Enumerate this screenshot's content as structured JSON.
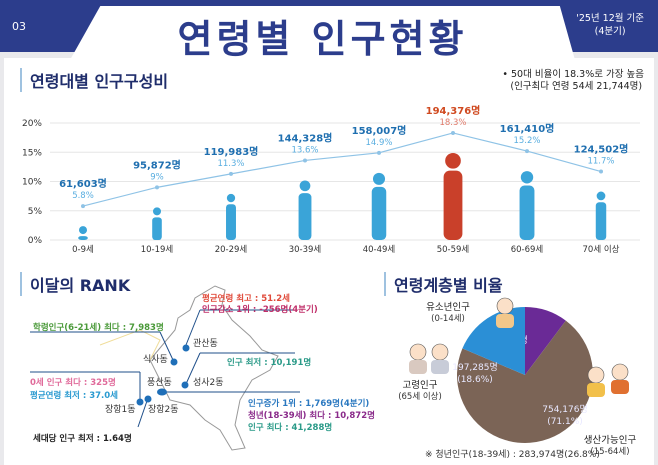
{
  "header": {
    "page_no": "03",
    "title": "연령별 인구현황",
    "date_line1": "'25년 12월 기준",
    "date_line2": "(4분기)"
  },
  "section1": {
    "title": "연령대별 인구구성비",
    "note_line1": "• 50대 비율이 18.3%로 가장 높음",
    "note_line2": "(인구최다 연령 54세 21,744명)"
  },
  "chart_data": [
    {
      "type": "line",
      "categories": [
        "0-9세",
        "10-19세",
        "20-29세",
        "30-39세",
        "40-49세",
        "50-59세",
        "60-69세",
        "70세 이상"
      ],
      "series": [
        {
          "values": [
            5.8,
            9,
            11.3,
            13.6,
            14.9,
            18.3,
            15.2,
            11.7
          ]
        }
      ],
      "counts": [
        "61,603명",
        "95,872명",
        "119,983명",
        "144,328명",
        "158,007명",
        "194,376명",
        "161,410명",
        "124,502명"
      ],
      "pct_labels": [
        "5.8%",
        "9%",
        "11.3%",
        "13.6%",
        "14.9%",
        "18.3%",
        "15.2%",
        "11.7%"
      ],
      "yticks": [
        "0%",
        "5%",
        "10%",
        "15%",
        "20%"
      ],
      "ylim": [
        0,
        20
      ],
      "highlight_index": 5,
      "colors": {
        "normal": "#3aa4d8",
        "highlight": "#c9402a",
        "line": "#8fc3e6"
      }
    },
    {
      "type": "pie",
      "title": "연령계층별 비율",
      "slices": [
        {
          "name": "유소년인구",
          "sub": "(0-14세)",
          "value": 108620,
          "label": "108,620명",
          "pct": "(10.2%)",
          "color": "#6a2a96"
        },
        {
          "name": "생산가능인구",
          "sub": "(15-64세)",
          "value": 754176,
          "label": "754,176명",
          "pct": "(71.1%)",
          "color": "#7b6456"
        },
        {
          "name": "고령인구",
          "sub": "(65세 이상)",
          "value": 197285,
          "label": "197,285명",
          "pct": "(18.6%)",
          "color": "#2b8fd6"
        }
      ]
    }
  ],
  "section2": {
    "title": "이달의 RANK",
    "youth_note": "※ 청년인구(18-39세) : 283,974명(26.8%)"
  },
  "rank": {
    "r1": "평균연령 최고 : 51.2세",
    "r2": "인구감소 1위 : -256명(4분기)",
    "r3": "학령인구(6-21세) 최다 : 7,983명",
    "r4": "인구 최저 : 10,191명",
    "r5": "0세 인구 최다 : 325명",
    "r6": "평균연령 최저 : 37.0세",
    "r7": "인구증가 1위 : 1,769명(4분기)",
    "r8": "청년(18-39세) 최다 : 10,872명",
    "r9": "인구 최다 : 41,288명",
    "r10": "세대당 인구 최저 : 1.64명",
    "dongs": [
      "관산동",
      "식사동",
      "풍산동",
      "성사2동",
      "장항1동",
      "장항2동"
    ]
  }
}
